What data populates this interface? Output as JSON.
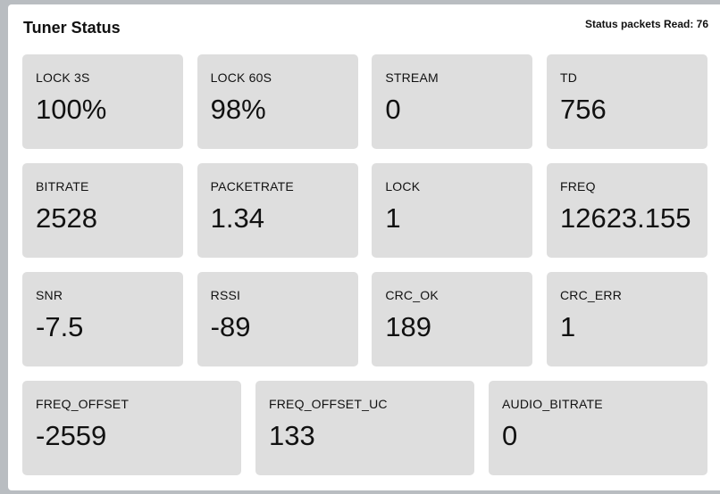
{
  "header": {
    "title": "Tuner Status",
    "packets_label": "Status packets Read: 76"
  },
  "rows": [
    [
      {
        "label": "LOCK 3S",
        "value": "100%"
      },
      {
        "label": "LOCK 60S",
        "value": "98%"
      },
      {
        "label": "STREAM",
        "value": "0"
      },
      {
        "label": "TD",
        "value": "756"
      }
    ],
    [
      {
        "label": "BITRATE",
        "value": "2528"
      },
      {
        "label": "PACKETRATE",
        "value": "1.34"
      },
      {
        "label": "LOCK",
        "value": "1"
      },
      {
        "label": "FREQ",
        "value": "12623.155"
      }
    ],
    [
      {
        "label": "SNR",
        "value": "-7.5"
      },
      {
        "label": "RSSI",
        "value": "-89"
      },
      {
        "label": "CRC_OK",
        "value": "189"
      },
      {
        "label": "CRC_ERR",
        "value": "1"
      }
    ],
    [
      {
        "label": "FREQ_OFFSET",
        "value": "-2559"
      },
      {
        "label": "FREQ_OFFSET_UC",
        "value": "133"
      },
      {
        "label": "AUDIO_BITRATE",
        "value": "0"
      }
    ]
  ]
}
